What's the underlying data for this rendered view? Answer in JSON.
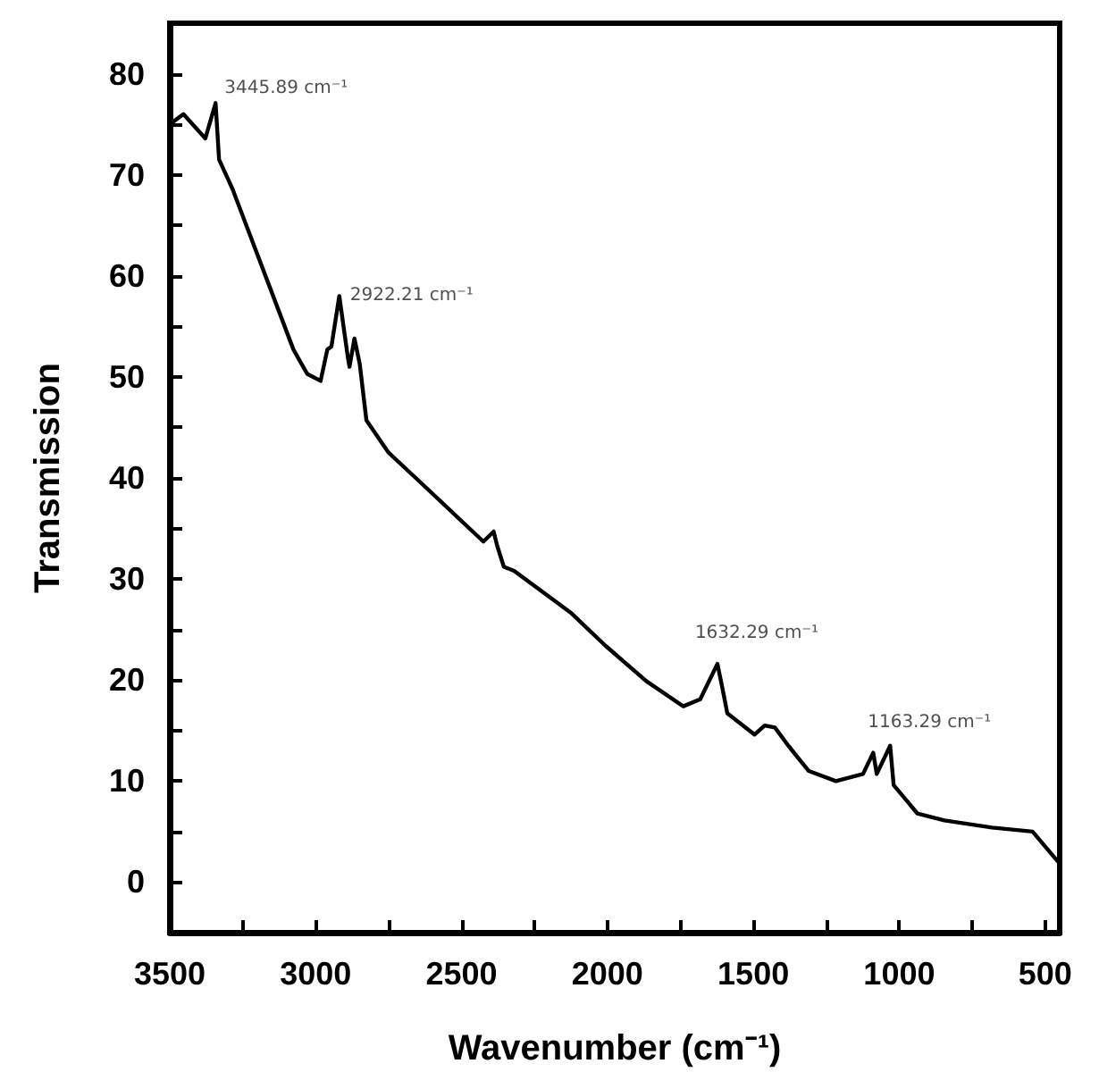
{
  "chart_data": {
    "type": "line",
    "xlabel": "Wavenumber (cm⁻¹)",
    "ylabel": "Transmission",
    "xlim": [
      3500,
      450
    ],
    "ylim": [
      -5,
      85
    ],
    "xticks": [
      3500,
      {
        "value": 3250,
        "label": null
      },
      3000,
      {
        "value": 2750,
        "label": null
      },
      2500,
      {
        "value": 2250,
        "label": null
      },
      2000,
      {
        "value": 1750,
        "label": null
      },
      1500,
      {
        "value": 1250,
        "label": null
      },
      1000,
      {
        "value": 750,
        "label": null
      },
      500
    ],
    "yticks": [
      0,
      {
        "value": 5,
        "label": null
      },
      10,
      {
        "value": 15,
        "label": null
      },
      20,
      {
        "value": 25,
        "label": null
      },
      30,
      {
        "value": 35,
        "label": null
      },
      40,
      {
        "value": 45,
        "label": null
      },
      50,
      {
        "value": 55,
        "label": null
      },
      60,
      {
        "value": 65,
        "label": null
      },
      70,
      {
        "value": 75,
        "label": null
      },
      80
    ],
    "grid": false,
    "marker": "none",
    "line_style": "solid",
    "series": [
      {
        "color": "#000000",
        "x": [
          3500,
          3453,
          3378,
          3343,
          3331,
          3285,
          3076,
          3029,
          2983,
          2960,
          2946,
          2919,
          2890,
          2884,
          2867,
          2849,
          2826,
          2750,
          2657,
          2425,
          2390,
          2378,
          2355,
          2320,
          2123,
          2007,
          1867,
          1740,
          1682,
          1623,
          1606,
          1589,
          1496,
          1461,
          1426,
          1380,
          1310,
          1217,
          1124,
          1089,
          1077,
          1031,
          1019,
          938,
          845,
          682,
          543,
          455
        ],
        "values": [
          75,
          76,
          73.6,
          77.1,
          71.5,
          68.6,
          52.7,
          50.3,
          49.6,
          52.7,
          53,
          58,
          52,
          51,
          53.8,
          51.3,
          45.7,
          42.5,
          40,
          33.7,
          34.7,
          33.3,
          31.2,
          30.8,
          26.6,
          23.4,
          19.9,
          17.4,
          18.1,
          21.6,
          19.2,
          16.7,
          14.6,
          15.5,
          15.3,
          13.5,
          11,
          10,
          10.7,
          12.8,
          10.7,
          13.5,
          9.6,
          6.8,
          6.1,
          5.4,
          5,
          2
        ]
      }
    ],
    "annotations": [
      {
        "text": "3445.89 cm⁻¹",
        "x": 3343,
        "y": 77.1
      },
      {
        "text": "2922.21 cm⁻¹",
        "x": 2919,
        "y": 58
      },
      {
        "text": "1632.29 cm⁻¹",
        "x": 1623,
        "y": 21.6
      },
      {
        "text": "1163.29 cm⁻¹",
        "x": 1031,
        "y": 13.5
      }
    ]
  }
}
